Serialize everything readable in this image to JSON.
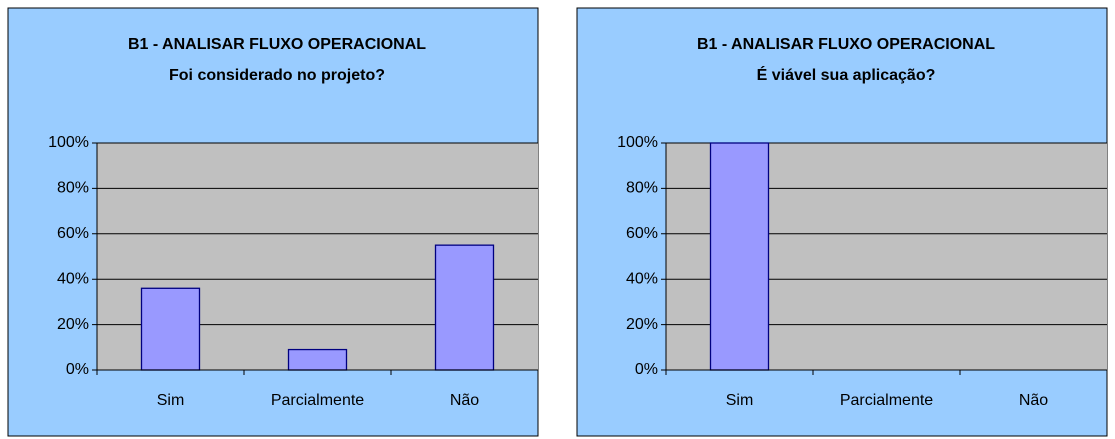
{
  "chart_data": [
    {
      "type": "bar",
      "title": "B1 - ANALISAR FLUXO OPERACIONAL",
      "subtitle": "Foi considerado no projeto?",
      "categories": [
        "Sim",
        "Parcialmente",
        "Não"
      ],
      "values": [
        36,
        9,
        55
      ],
      "color": "#9999ff",
      "ylim": [
        0,
        100
      ],
      "yticks": [
        {
          "value": 0,
          "label": "0%"
        },
        {
          "value": 20,
          "label": "20%"
        },
        {
          "value": 40,
          "label": "40%"
        },
        {
          "value": 60,
          "label": "60%"
        },
        {
          "value": 80,
          "label": "80%"
        },
        {
          "value": 100,
          "label": "100%"
        }
      ],
      "grid": true
    },
    {
      "type": "bar",
      "title": "B1 - ANALISAR FLUXO OPERACIONAL",
      "subtitle": "É viável sua aplicação?",
      "categories": [
        "Sim",
        "Parcialmente",
        "Não"
      ],
      "values": [
        100,
        0,
        0
      ],
      "color": "#9999ff",
      "ylim": [
        0,
        100
      ],
      "yticks": [
        {
          "value": 0,
          "label": "0%"
        },
        {
          "value": 20,
          "label": "20%"
        },
        {
          "value": 40,
          "label": "40%"
        },
        {
          "value": 60,
          "label": "60%"
        },
        {
          "value": 80,
          "label": "80%"
        },
        {
          "value": 100,
          "label": "100%"
        }
      ],
      "grid": true
    }
  ]
}
